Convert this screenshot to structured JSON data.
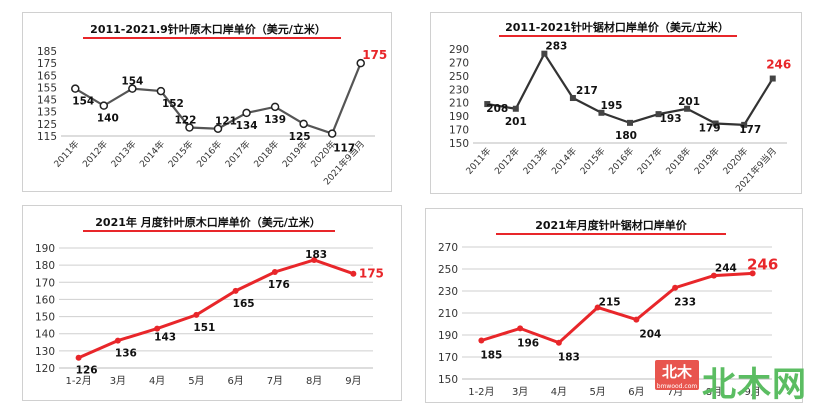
{
  "chart_data": [
    {
      "type": "line",
      "title": "2011-2021.9针叶原木口岸单价（美元/立米）",
      "categories": [
        "2011年",
        "2012年",
        "2013年",
        "2014年",
        "2015年",
        "2016年",
        "2017年",
        "2018年",
        "2019年",
        "2020年",
        "2021年9当月"
      ],
      "values": [
        154,
        140,
        154,
        152,
        122,
        121,
        134,
        139,
        125,
        117,
        175
      ],
      "data_labels": [
        "154",
        "140",
        "154",
        "152",
        "122",
        "121",
        "134",
        "139",
        "125",
        "117",
        "175"
      ],
      "ylim": [
        115,
        185
      ],
      "yticks": [
        115,
        125,
        135,
        145,
        155,
        165,
        175,
        185
      ],
      "series_color": "#555555",
      "highlight_color": "#e8262a",
      "grid": false
    },
    {
      "type": "line",
      "title": "2011-2021针叶锯材口岸单价（美元/立米）",
      "categories": [
        "2011年",
        "2012年",
        "2013年",
        "2014年",
        "2015年",
        "2016年",
        "2017年",
        "2018年",
        "2019年",
        "2020年",
        "2021年9当月"
      ],
      "values": [
        208,
        201,
        283,
        217,
        195,
        180,
        193,
        201,
        179,
        177,
        246
      ],
      "data_labels": [
        "208",
        "201",
        "283",
        "217",
        "195",
        "180",
        "193",
        "201",
        "179",
        "177",
        "246"
      ],
      "ylim": [
        150,
        290
      ],
      "yticks": [
        150,
        170,
        190,
        210,
        230,
        250,
        270,
        290
      ],
      "series_color": "#333333",
      "highlight_color": "#e8262a",
      "grid": false
    },
    {
      "type": "line",
      "title": "2021年 月度针叶原木口岸单价（美元/立米）",
      "categories": [
        "1-2月",
        "3月",
        "4月",
        "5月",
        "6月",
        "7月",
        "8月",
        "9月"
      ],
      "values": [
        126,
        136,
        143,
        151,
        165,
        176,
        183,
        175
      ],
      "data_labels": [
        "126",
        "136",
        "143",
        "151",
        "165",
        "176",
        "183",
        "175"
      ],
      "ylim": [
        120,
        190
      ],
      "yticks": [
        120,
        130,
        140,
        150,
        160,
        170,
        180,
        190
      ],
      "series_color": "#e8262a",
      "highlight_color": "#e8262a",
      "grid": true
    },
    {
      "type": "line",
      "title": "2021年月度针叶锯材口岸单价",
      "categories": [
        "1-2月",
        "3月",
        "4月",
        "5月",
        "6月",
        "7月",
        "8月",
        "9月"
      ],
      "values": [
        185,
        196,
        183,
        215,
        204,
        233,
        244,
        246
      ],
      "data_labels": [
        "185",
        "196",
        "183",
        "215",
        "204",
        "233",
        "244",
        "246"
      ],
      "ylim": [
        150,
        270
      ],
      "yticks": [
        150,
        170,
        190,
        210,
        230,
        250,
        270
      ],
      "series_color": "#e8262a",
      "highlight_color": "#e8262a",
      "grid": true
    }
  ],
  "watermark": {
    "logo_text": "北木",
    "logo_sub": "bmwood.com",
    "text": "北木网"
  }
}
